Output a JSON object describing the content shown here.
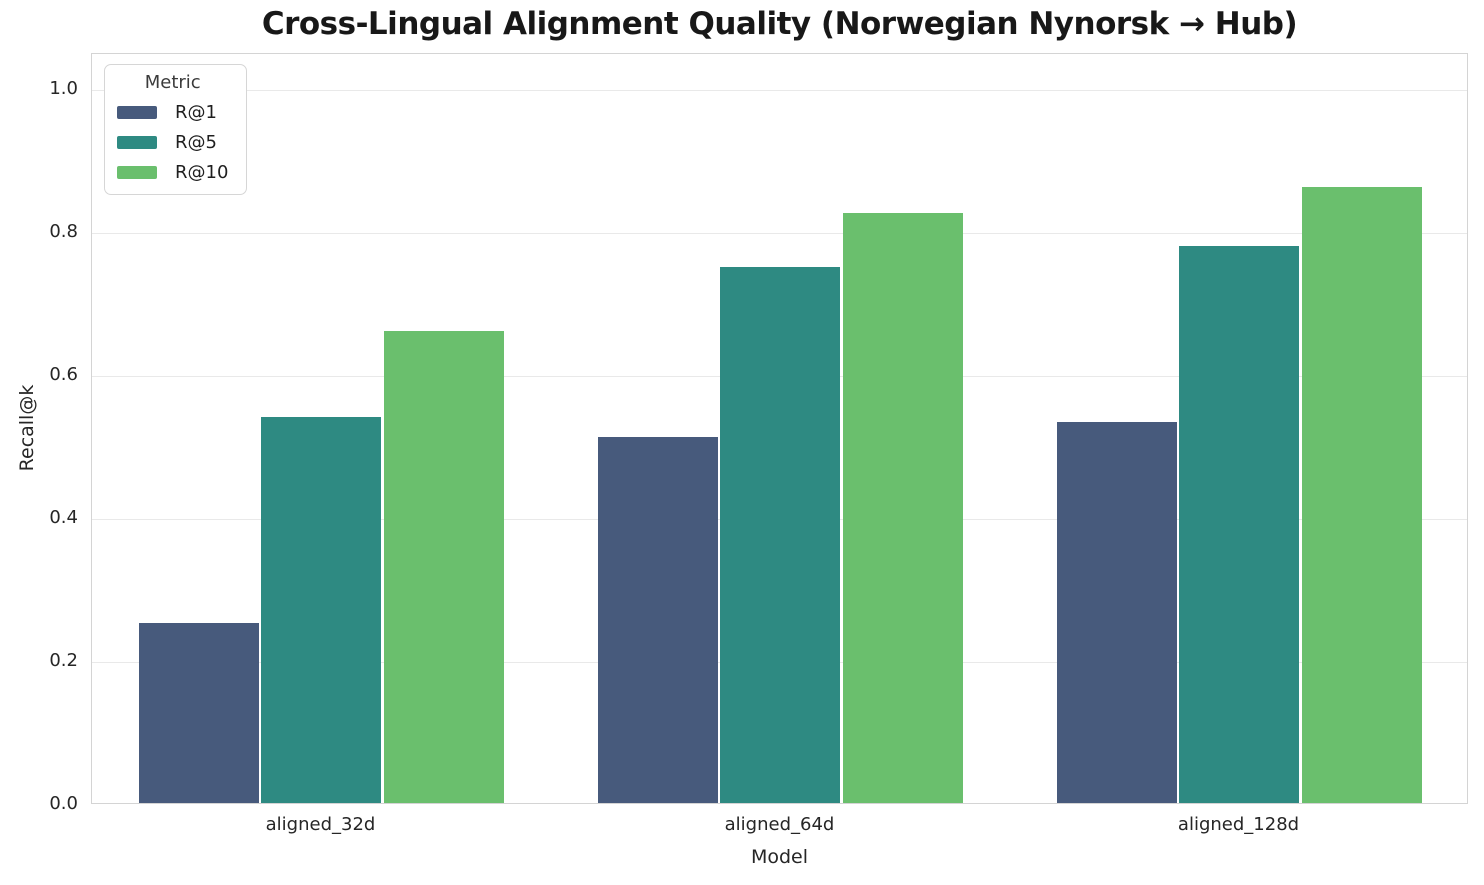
{
  "chart_data": {
    "type": "bar",
    "title": "Cross-Lingual Alignment Quality (Norwegian Nynorsk → Hub)",
    "xlabel": "Model",
    "ylabel": "Recall@k",
    "categories": [
      "aligned_32d",
      "aligned_64d",
      "aligned_128d"
    ],
    "series": [
      {
        "name": "R@1",
        "color": "#475a7c",
        "values": [
          0.252,
          0.512,
          0.533
        ]
      },
      {
        "name": "R@5",
        "color": "#2e8a82",
        "values": [
          0.54,
          0.749,
          0.779
        ]
      },
      {
        "name": "R@10",
        "color": "#6abf6d",
        "values": [
          0.66,
          0.825,
          0.861
        ]
      }
    ],
    "ylim": [
      0,
      1.05
    ],
    "yticks": [
      0,
      0.2,
      0.4,
      0.6,
      0.8,
      1.0
    ],
    "ytick_labels": [
      "0.0",
      "0.2",
      "0.4",
      "0.6",
      "0.8",
      "1.0"
    ],
    "grid": "horizontal",
    "legend": {
      "title": "Metric",
      "position": "upper-left"
    }
  },
  "colors": {
    "background": "#ffffff",
    "grid": "#e9e9e9",
    "spine": "#d4d4d4",
    "tick_text": "#262626",
    "title_text": "#181818"
  }
}
